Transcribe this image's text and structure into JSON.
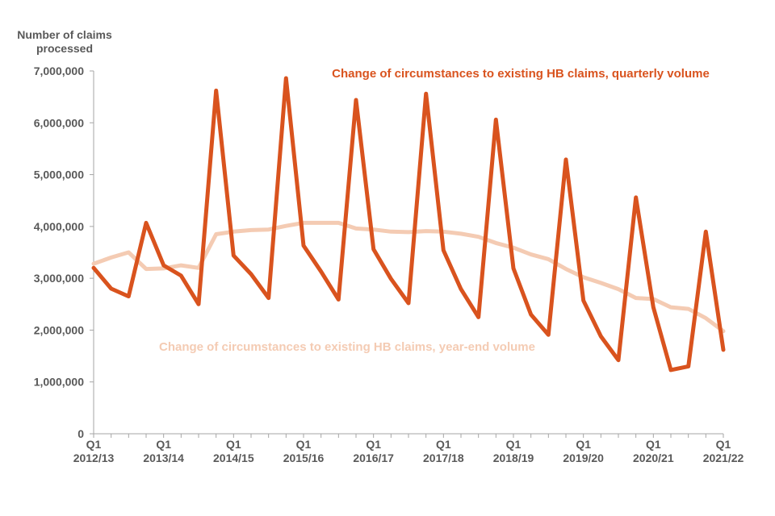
{
  "chart_data": {
    "type": "line",
    "title": "",
    "ylabel_lines": [
      "Number of claims",
      "processed"
    ],
    "ylim": [
      0,
      7000000
    ],
    "yticks": [
      0,
      1000000,
      2000000,
      3000000,
      4000000,
      5000000,
      6000000,
      7000000
    ],
    "ytick_labels": [
      "0",
      "1,000,000",
      "2,000,000",
      "3,000,000",
      "4,000,000",
      "5,000,000",
      "6,000,000",
      "7,000,000"
    ],
    "grid": false,
    "x": [
      "2012/13 Q1",
      "2012/13 Q2",
      "2012/13 Q3",
      "2012/13 Q4",
      "2013/14 Q1",
      "2013/14 Q2",
      "2013/14 Q3",
      "2013/14 Q4",
      "2014/15 Q1",
      "2014/15 Q2",
      "2014/15 Q3",
      "2014/15 Q4",
      "2015/16 Q1",
      "2015/16 Q2",
      "2015/16 Q3",
      "2015/16 Q4",
      "2016/17 Q1",
      "2016/17 Q2",
      "2016/17 Q3",
      "2016/17 Q4",
      "2017/18 Q1",
      "2017/18 Q2",
      "2017/18 Q3",
      "2017/18 Q4",
      "2018/19 Q1",
      "2018/19 Q2",
      "2018/19 Q3",
      "2018/19 Q4",
      "2019/20 Q1",
      "2019/20 Q2",
      "2019/20 Q3",
      "2019/20 Q4",
      "2020/21 Q1",
      "2020/21 Q2",
      "2020/21 Q3",
      "2020/21 Q4",
      "2021/22 Q1"
    ],
    "x_tick_labels": [
      {
        "index": 0,
        "lines": [
          "Q1",
          "2012/13"
        ]
      },
      {
        "index": 4,
        "lines": [
          "Q1",
          "2013/14"
        ]
      },
      {
        "index": 8,
        "lines": [
          "Q1",
          "2014/15"
        ]
      },
      {
        "index": 12,
        "lines": [
          "Q1",
          "2015/16"
        ]
      },
      {
        "index": 16,
        "lines": [
          "Q1",
          "2016/17"
        ]
      },
      {
        "index": 20,
        "lines": [
          "Q1",
          "2017/18"
        ]
      },
      {
        "index": 24,
        "lines": [
          "Q1",
          "2018/19"
        ]
      },
      {
        "index": 28,
        "lines": [
          "Q1",
          "2019/20"
        ]
      },
      {
        "index": 32,
        "lines": [
          "Q1",
          "2020/21"
        ]
      },
      {
        "index": 36,
        "lines": [
          "Q1",
          "2021/22"
        ]
      }
    ],
    "series": [
      {
        "name": "Change of circumstances to existing HB claims, quarterly volume",
        "color": "#d9531e",
        "values": [
          3200000,
          2800000,
          2650000,
          4070000,
          3250000,
          3050000,
          2500000,
          6620000,
          3440000,
          3080000,
          2620000,
          6860000,
          3630000,
          3130000,
          2590000,
          6440000,
          3560000,
          2990000,
          2520000,
          6560000,
          3540000,
          2790000,
          2250000,
          6060000,
          3190000,
          2300000,
          1910000,
          5290000,
          2570000,
          1880000,
          1420000,
          4560000,
          2440000,
          1230000,
          1300000,
          3900000,
          1620000
        ]
      },
      {
        "name": "Change of circumstances to existing HB claims, year-end volume",
        "color": "#f4cbb3",
        "values": [
          3280000,
          3400000,
          3500000,
          3180000,
          3190000,
          3250000,
          3200000,
          3850000,
          3900000,
          3930000,
          3940000,
          4010000,
          4070000,
          4070000,
          4070000,
          3960000,
          3940000,
          3900000,
          3890000,
          3910000,
          3900000,
          3860000,
          3800000,
          3680000,
          3590000,
          3460000,
          3370000,
          3180000,
          3020000,
          2910000,
          2790000,
          2620000,
          2600000,
          2440000,
          2410000,
          2230000,
          1980000
        ]
      }
    ]
  }
}
